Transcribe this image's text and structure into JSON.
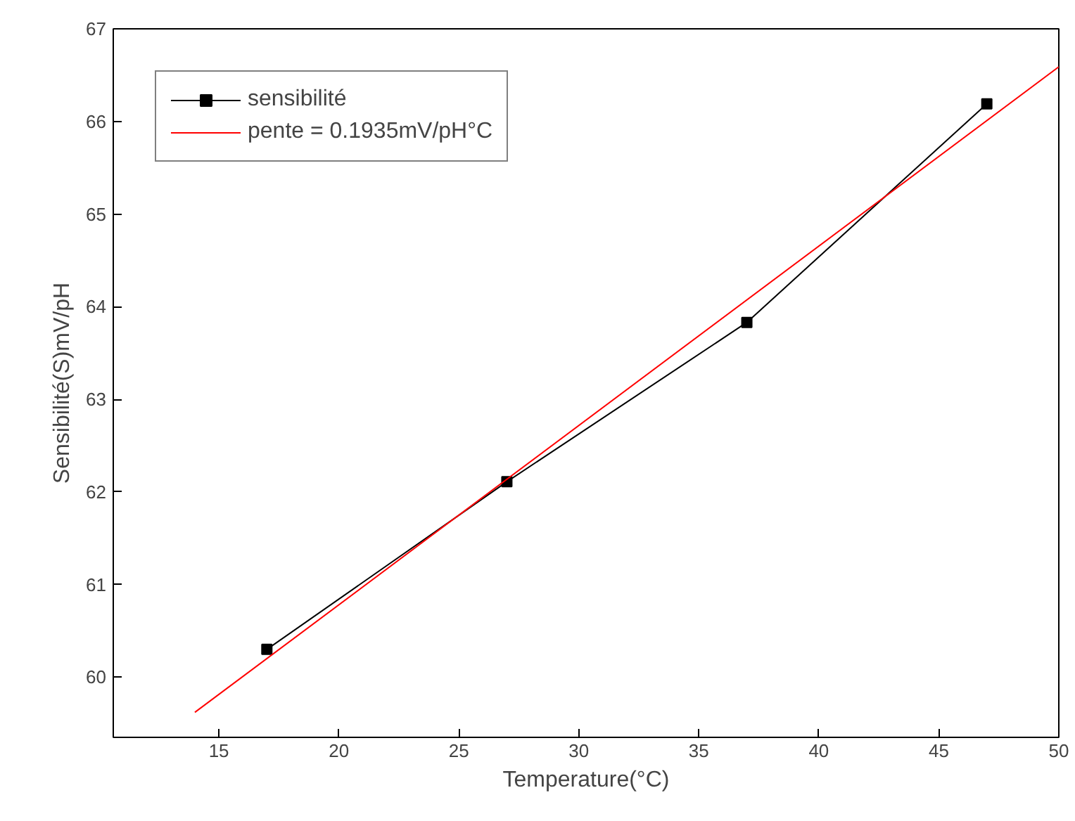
{
  "chart_data": {
    "type": "line",
    "xlabel": "Temperature(°C)",
    "ylabel": "Sensibilité(S)mV/pH",
    "xlim": [
      10.6,
      50
    ],
    "ylim": [
      59.35,
      67
    ],
    "xticks": [
      15,
      20,
      25,
      30,
      35,
      40,
      45,
      50
    ],
    "yticks": [
      60,
      61,
      62,
      63,
      64,
      65,
      66,
      67
    ],
    "grid": false,
    "legend": "top left",
    "series": [
      {
        "name": "sensibilité",
        "color": "#000000",
        "x": [
          17,
          27,
          37,
          47
        ],
        "values": [
          60.3,
          62.11,
          63.83,
          66.19
        ],
        "marker": "square"
      },
      {
        "name": "pente = 0.1935mV/pH°C",
        "color": "#ff0000",
        "x": [
          14,
          50
        ],
        "values": [
          59.62,
          66.59
        ],
        "marker": "none"
      }
    ]
  }
}
